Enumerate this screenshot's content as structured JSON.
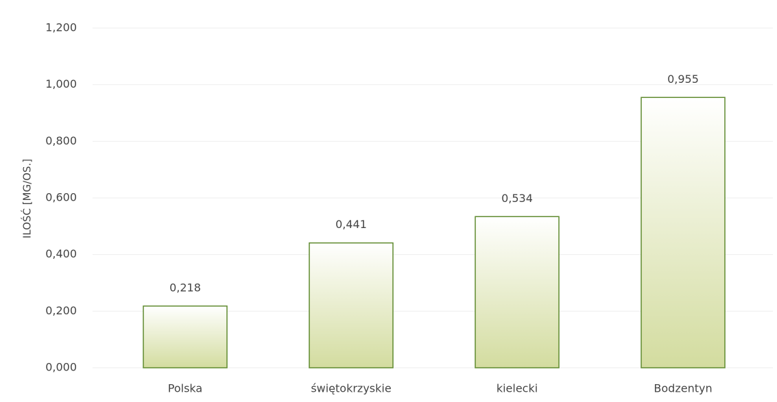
{
  "chart_data": {
    "type": "bar",
    "y_label": "ILOŚĆ [MG/OS.]",
    "categories": [
      "Polska",
      "świętokrzyskie",
      "kielecki",
      "Bodzentyn"
    ],
    "values": [
      0.218,
      0.441,
      0.534,
      0.955
    ],
    "value_labels": [
      "0,218",
      "0,441",
      "0,534",
      "0,955"
    ],
    "color": "#d3dc9f",
    "edge_color": "#5f8a2e",
    "ylim": [
      0,
      1.2
    ],
    "yticks": [
      {
        "value": 0,
        "label": "0,000"
      },
      {
        "value": 0.2,
        "label": "0,200"
      },
      {
        "value": 0.4,
        "label": "0,400"
      },
      {
        "value": 0.6,
        "label": "0,600"
      },
      {
        "value": 0.8,
        "label": "0,800"
      },
      {
        "value": 1.0,
        "label": "1,000"
      },
      {
        "value": 1.2,
        "label": "1,200"
      }
    ],
    "grid": true
  }
}
